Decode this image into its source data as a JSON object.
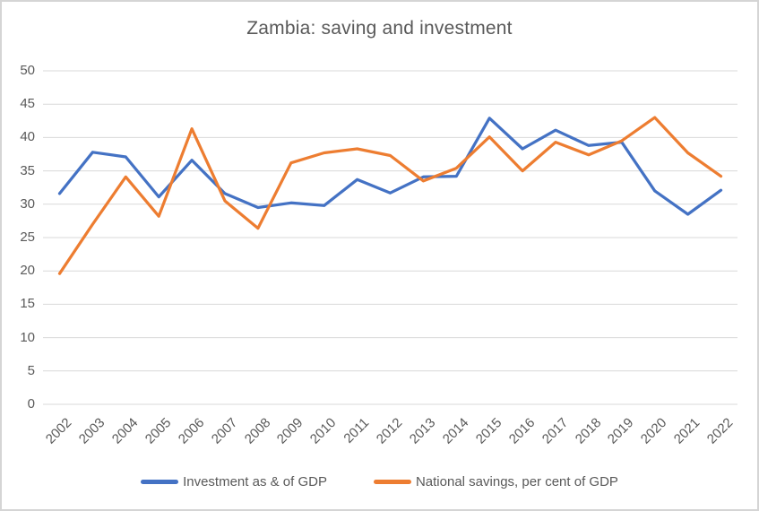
{
  "chart_data": {
    "type": "line",
    "title": "Zambia: saving and investment",
    "categories": [
      "2002",
      "2003",
      "2004",
      "2005",
      "2006",
      "2007",
      "2008",
      "2009",
      "2010",
      "2011",
      "2012",
      "2013",
      "2014",
      "2015",
      "2016",
      "2017",
      "2018",
      "2019",
      "2020",
      "2021",
      "2022"
    ],
    "series": [
      {
        "name": "Investment as & of GDP",
        "color": "#4472C4",
        "values": [
          31.6,
          37.8,
          37.1,
          31.1,
          36.6,
          31.6,
          29.5,
          30.2,
          29.8,
          33.7,
          31.7,
          34.1,
          34.2,
          42.9,
          38.3,
          41.1,
          38.8,
          39.3,
          32.0,
          28.5,
          32.1
        ]
      },
      {
        "name": "National savings, per cent of GDP",
        "color": "#ED7D31",
        "values": [
          19.6,
          27.0,
          34.1,
          28.2,
          41.3,
          30.5,
          26.4,
          36.2,
          37.7,
          38.3,
          37.3,
          33.5,
          35.4,
          40.1,
          35.0,
          39.3,
          37.4,
          39.5,
          43.0,
          37.7,
          34.2
        ]
      }
    ],
    "xlabel": "",
    "ylabel": "",
    "ylim": [
      0,
      50
    ],
    "ytick_step": 5,
    "grid": "horizontal-only",
    "legend_position": "bottom"
  },
  "colors": {
    "gridline": "#D9D9D9",
    "axis_text": "#595959",
    "title_text": "#595959",
    "frame_border": "#D5D5D5",
    "background": "#FFFFFF"
  }
}
